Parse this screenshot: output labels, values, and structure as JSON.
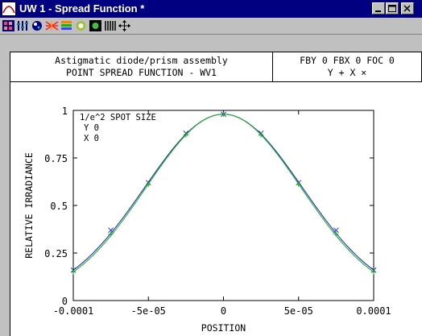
{
  "window": {
    "title": "UW 1 - Spread Function *"
  },
  "toolbar": {
    "buttons": [
      {
        "icon": "grid-color-icon"
      },
      {
        "icon": "settings-arrows-icon"
      },
      {
        "icon": "palette-icon"
      },
      {
        "icon": "rays-icon"
      },
      {
        "icon": "color-bars-icon"
      },
      {
        "icon": "spot-icon"
      },
      {
        "icon": "monitor-icon"
      },
      {
        "icon": "bars-icon"
      },
      {
        "icon": "move-icon"
      }
    ]
  },
  "header": {
    "left_line1": "Astigmatic diode/prism assembly",
    "left_line2": "POINT SPREAD FUNCTION - WV1",
    "right_line1": "FBY 0 FBX 0 FOC 0",
    "right_line2": "Y +  X ×"
  },
  "chart_data": {
    "type": "line",
    "xlabel": "POSITION",
    "ylabel": "RELATIVE IRRADIANCE",
    "xlim": [
      -0.0001,
      0.0001
    ],
    "ylim": [
      0,
      1
    ],
    "xticks": [
      "-0.0001",
      "-5e-05",
      "0",
      "5e-05",
      "0.0001"
    ],
    "xtick_values": [
      -0.0001,
      -5e-05,
      0,
      5e-05,
      0.0001
    ],
    "yticks": [
      "0",
      "0.25",
      "0.5",
      "0.75",
      "1"
    ],
    "ytick_values": [
      0,
      0.25,
      0.5,
      0.75,
      1
    ],
    "legend": {
      "title": "1/e^2 SPOT SIZE",
      "y_label": "Y 0",
      "x_label": "X 0"
    },
    "series": [
      {
        "marker": "x",
        "color": "#2030c0",
        "x": [
          -0.0001,
          -7.5e-05,
          -5e-05,
          -2.5e-05,
          0,
          2.5e-05,
          5e-05,
          7.5e-05,
          0.0001
        ],
        "values": [
          0.16,
          0.37,
          0.62,
          0.88,
          0.98,
          0.88,
          0.62,
          0.37,
          0.16
        ]
      },
      {
        "marker": "+",
        "color": "#20b020",
        "x": [
          -0.0001,
          -7.5e-05,
          -5e-05,
          -2.5e-05,
          0,
          2.5e-05,
          5e-05,
          7.5e-05,
          0.0001
        ],
        "values": [
          0.15,
          0.35,
          0.61,
          0.87,
          0.98,
          0.87,
          0.61,
          0.35,
          0.15
        ]
      }
    ]
  }
}
